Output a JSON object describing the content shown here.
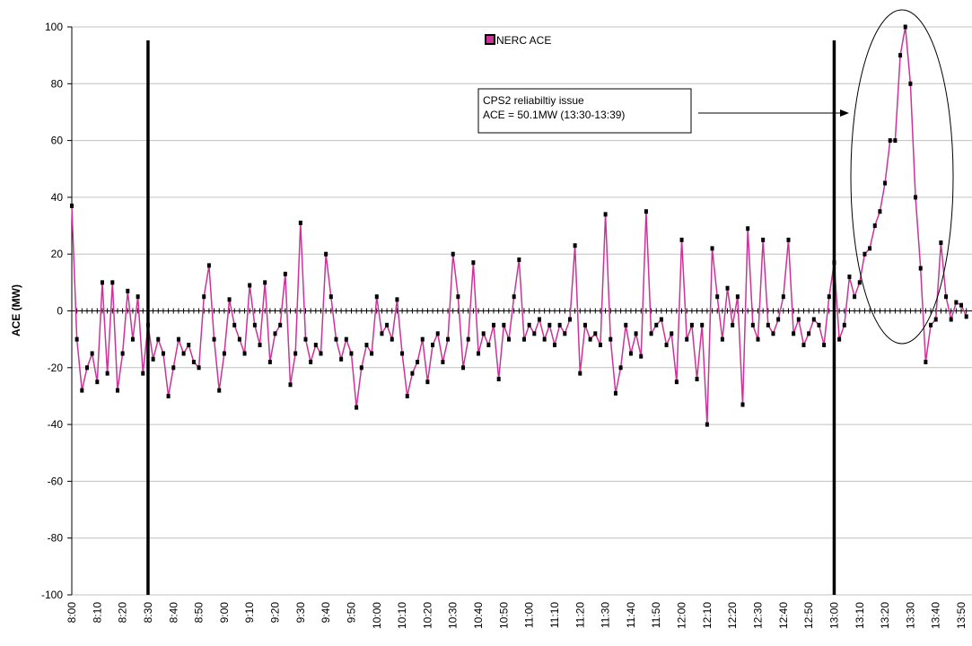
{
  "chart_data": {
    "type": "line",
    "y_label": "ACE (MW)",
    "categories": [
      "8:00",
      null,
      null,
      null,
      null,
      "8:10",
      null,
      null,
      null,
      null,
      "8:20",
      null,
      null,
      null,
      null,
      "8:30",
      null,
      null,
      null,
      null,
      "8:40",
      null,
      null,
      null,
      null,
      "8:50",
      null,
      null,
      null,
      null,
      "9:00",
      null,
      null,
      null,
      null,
      "9:10",
      null,
      null,
      null,
      null,
      "9:20",
      null,
      null,
      null,
      null,
      "9:30",
      null,
      null,
      null,
      null,
      "9:40",
      null,
      null,
      null,
      null,
      "9:50",
      null,
      null,
      null,
      null,
      "10:00",
      null,
      null,
      null,
      null,
      "10:10",
      null,
      null,
      null,
      null,
      "10:20",
      null,
      null,
      null,
      null,
      "10:30",
      null,
      null,
      null,
      null,
      "10:40",
      null,
      null,
      null,
      null,
      "10:50",
      null,
      null,
      null,
      null,
      "11:00",
      null,
      null,
      null,
      null,
      "11:10",
      null,
      null,
      null,
      null,
      "11:20",
      null,
      null,
      null,
      null,
      "11:30",
      null,
      null,
      null,
      null,
      "11:40",
      null,
      null,
      null,
      null,
      "11:50",
      null,
      null,
      null,
      null,
      "12:00",
      null,
      null,
      null,
      null,
      "12:10",
      null,
      null,
      null,
      null,
      "12:20",
      null,
      null,
      null,
      null,
      "12:30",
      null,
      null,
      null,
      null,
      "12:40",
      null,
      null,
      null,
      null,
      "12:50",
      null,
      null,
      null,
      null,
      "13:00",
      null,
      null,
      null,
      null,
      "13:10",
      null,
      null,
      null,
      null,
      "13:20",
      null,
      null,
      null,
      null,
      "13:30",
      null,
      null,
      null,
      null,
      "13:40",
      null,
      null,
      null,
      null,
      "13:50",
      null
    ],
    "series": [
      {
        "name": "NERC ACE",
        "color": "#cc3399",
        "marker_color": "#000000",
        "values": [
          37,
          -10,
          -28,
          -20,
          -15,
          -25,
          10,
          -22,
          10,
          -28,
          -15,
          7,
          -10,
          5,
          -22,
          -5,
          -17,
          -10,
          -15,
          -30,
          -20,
          -10,
          -15,
          -12,
          -18,
          -20,
          5,
          16,
          -10,
          -28,
          -15,
          4,
          -5,
          -10,
          -15,
          9,
          -5,
          -12,
          10,
          -18,
          -8,
          -5,
          13,
          -26,
          -15,
          31,
          -10,
          -18,
          -12,
          -15,
          20,
          5,
          -10,
          -17,
          -10,
          -15,
          -34,
          -20,
          -12,
          -15,
          5,
          -8,
          -5,
          -10,
          4,
          -15,
          -30,
          -22,
          -18,
          -10,
          -25,
          -12,
          -8,
          -18,
          -10,
          20,
          5,
          -20,
          -10,
          17,
          -15,
          -8,
          -12,
          -5,
          -24,
          -5,
          -10,
          5,
          18,
          -10,
          -5,
          -8,
          -3,
          -10,
          -5,
          -12,
          -5,
          -8,
          -3,
          23,
          -22,
          -5,
          -10,
          -8,
          -12,
          34,
          -10,
          -29,
          -20,
          -5,
          -15,
          -8,
          -16,
          35,
          -8,
          -5,
          -3,
          -12,
          -8,
          -25,
          25,
          -10,
          -5,
          -24,
          -5,
          -40,
          22,
          5,
          -10,
          8,
          -5,
          5,
          -33,
          29,
          -5,
          -10,
          25,
          -5,
          -8,
          -3,
          5,
          25,
          -8,
          -3,
          -12,
          -8,
          -3,
          -5,
          -12,
          5,
          17,
          -10,
          -5,
          12,
          5,
          10,
          20,
          22,
          30,
          35,
          45,
          60,
          60,
          90,
          100,
          80,
          40,
          15,
          -18,
          -5,
          -3,
          24,
          5,
          -3,
          3,
          2,
          -2
        ]
      }
    ],
    "ylim": [
      -100,
      100
    ],
    "yticks": [
      -100,
      -80,
      -60,
      -40,
      -20,
      0,
      20,
      40,
      60,
      80,
      100
    ],
    "grid": true,
    "reference_lines": [
      "8:30",
      "13:00"
    ],
    "annotation": [
      "CPS2 reliabiltiy issue",
      "ACE = 50.1MW (13:30-13:39)"
    ]
  }
}
